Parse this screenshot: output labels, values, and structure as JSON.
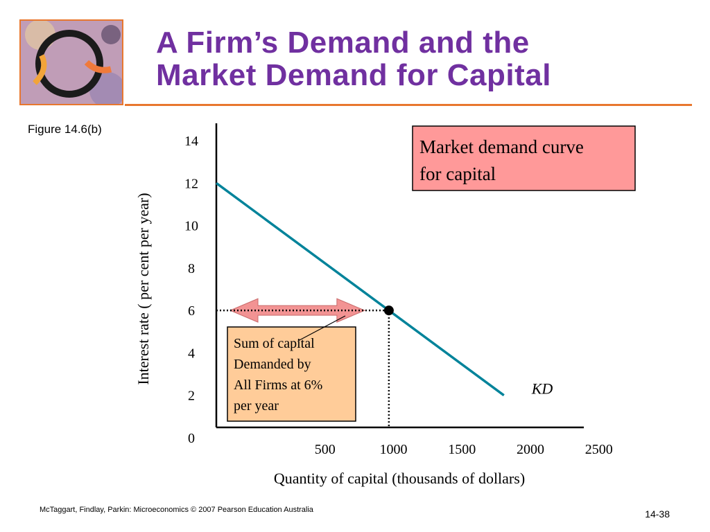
{
  "slide": {
    "title_line1": "A Firm’s Demand and the",
    "title_line2": "Market Demand for Capital",
    "figure_label": "Figure 14.6(b)",
    "footer": "McTaggart, Findlay, Parkin: Microeconomics © 2007 Pearson Education Australia",
    "page_number": "14-38"
  },
  "colors": {
    "title": "#7030a0",
    "accent_rule": "#e8772e",
    "demand_line": "#00839a",
    "callout_fill": "#ff9999",
    "note_fill": "#ffcc99",
    "arrow_fill": "#f29393"
  },
  "chart_data": {
    "type": "line",
    "xlabel": "Quantity of capital (thousands of dollars)",
    "ylabel": "Interest rate ( per cent per year)",
    "x_ticks": [
      500,
      1000,
      1500,
      2000,
      2500
    ],
    "y_ticks": [
      0,
      2,
      4,
      6,
      8,
      10,
      12,
      14
    ],
    "xlim": [
      0,
      2700
    ],
    "ylim": [
      0,
      14
    ],
    "grid": false,
    "series": [
      {
        "name": "KD",
        "x": [
          0,
          2100
        ],
        "y": [
          12,
          2
        ]
      }
    ],
    "point": {
      "x": 1250,
      "y": 6
    },
    "annotations": {
      "callout_line1": "Market demand curve",
      "callout_line2": " for capital",
      "note_lines": [
        "Sum of capital",
        "Demanded by",
        "All Firms at 6%",
        " per year"
      ]
    }
  }
}
